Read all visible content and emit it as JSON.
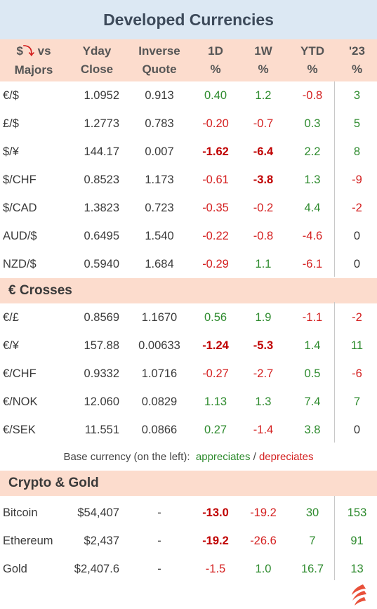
{
  "title": "Developed Currencies",
  "header": {
    "col0_a": "$",
    "col0_arrow": "⤵",
    "col0_b": " vs",
    "col0_c": "Majors",
    "col1_a": "Yday",
    "col1_b": "Close",
    "col2_a": "Inverse",
    "col2_b": "Quote",
    "col3_a": "1D",
    "col3_b": "%",
    "col4_a": "1W",
    "col4_b": "%",
    "col5_a": "YTD",
    "col5_b": "%",
    "col6_a": "'23",
    "col6_b": "%"
  },
  "majors": [
    {
      "pair": "€/$",
      "close": "1.0952",
      "inv": "0.913",
      "d1": "0.40",
      "w1": "1.2",
      "ytd": "-0.8",
      "y23": "3"
    },
    {
      "pair": "£/$",
      "close": "1.2773",
      "inv": "0.783",
      "d1": "-0.20",
      "w1": "-0.7",
      "ytd": "0.3",
      "y23": "5"
    },
    {
      "pair": "$/¥",
      "close": "144.17",
      "inv": "0.007",
      "d1": "-1.62",
      "w1": "-6.4",
      "ytd": "2.2",
      "y23": "8"
    },
    {
      "pair": "$/CHF",
      "close": "0.8523",
      "inv": "1.173",
      "d1": "-0.61",
      "w1": "-3.8",
      "ytd": "1.3",
      "y23": "-9"
    },
    {
      "pair": "$/CAD",
      "close": "1.3823",
      "inv": "0.723",
      "d1": "-0.35",
      "w1": "-0.2",
      "ytd": "4.4",
      "y23": "-2"
    },
    {
      "pair": "AUD/$",
      "close": "0.6495",
      "inv": "1.540",
      "d1": "-0.22",
      "w1": "-0.8",
      "ytd": "-4.6",
      "y23": "0"
    },
    {
      "pair": "NZD/$",
      "close": "0.5940",
      "inv": "1.684",
      "d1": "-0.29",
      "w1": "1.1",
      "ytd": "-6.1",
      "y23": "0"
    }
  ],
  "crosses_title": "€ Crosses",
  "crosses": [
    {
      "pair": "€/£",
      "close": "0.8569",
      "inv": "1.1670",
      "d1": "0.56",
      "w1": "1.9",
      "ytd": "-1.1",
      "y23": "-2"
    },
    {
      "pair": "€/¥",
      "close": "157.88",
      "inv": "0.00633",
      "d1": "-1.24",
      "w1": "-5.3",
      "ytd": "1.4",
      "y23": "11"
    },
    {
      "pair": "€/CHF",
      "close": "0.9332",
      "inv": "1.0716",
      "d1": "-0.27",
      "w1": "-2.7",
      "ytd": "0.5",
      "y23": "-6"
    },
    {
      "pair": "€/NOK",
      "close": "12.060",
      "inv": "0.0829",
      "d1": "1.13",
      "w1": "1.3",
      "ytd": "7.4",
      "y23": "7"
    },
    {
      "pair": "€/SEK",
      "close": "11.551",
      "inv": "0.0866",
      "d1": "0.27",
      "w1": "-1.4",
      "ytd": "3.8",
      "y23": "0"
    }
  ],
  "note": {
    "prefix": "Base currency (on the left):",
    "appreciates": "appreciates",
    "slash": " / ",
    "depreciates": "depreciates"
  },
  "crypto_title": "Crypto & Gold",
  "crypto": [
    {
      "pair": "Bitcoin",
      "close": "$54,407",
      "inv": "-",
      "d1": "-13.0",
      "w1": "-19.2",
      "ytd": "30",
      "y23": "153"
    },
    {
      "pair": "Ethereum",
      "close": "$2,437",
      "inv": "-",
      "d1": "-19.2",
      "w1": "-26.6",
      "ytd": "7",
      "y23": "91"
    },
    {
      "pair": "Gold",
      "close": "$2,407.6",
      "inv": "-",
      "d1": "-1.5",
      "w1": "1.0",
      "ytd": "16.7",
      "y23": "13"
    }
  ],
  "colors": {
    "positive": "#2e8b2e",
    "negative": "#d42020",
    "header_bg": "#fcdccd",
    "title_bg": "#dce8f3",
    "logo": "#e8503a"
  },
  "logo_icon": "flame-logo-icon"
}
